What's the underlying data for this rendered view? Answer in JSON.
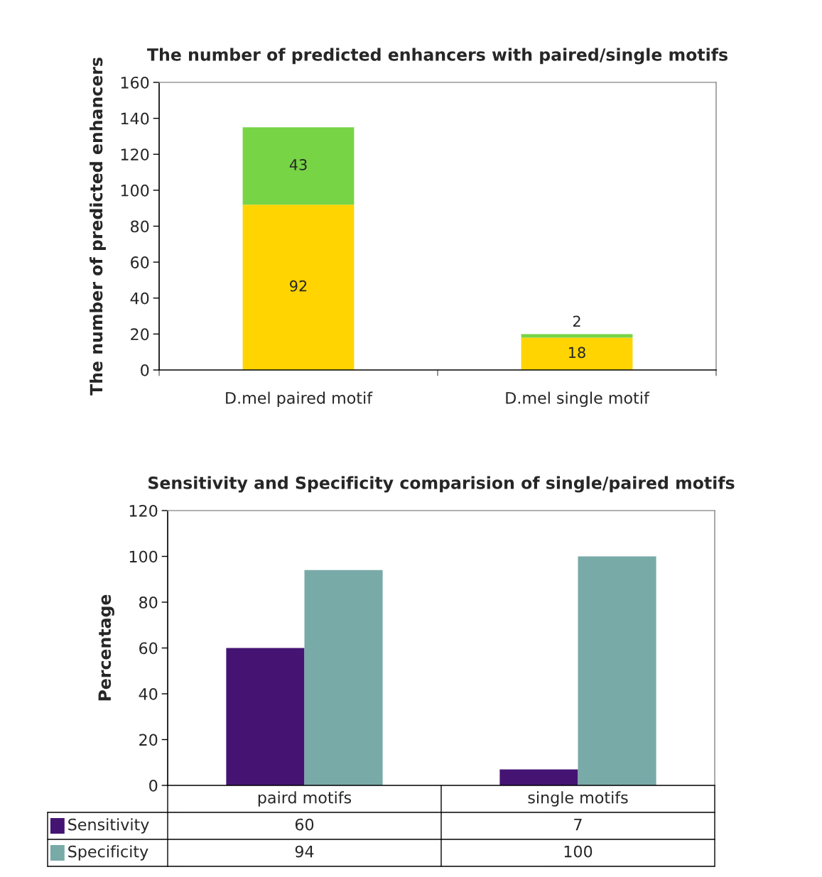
{
  "chart_data": [
    {
      "type": "bar",
      "title": "The number of predicted enhancers with paired/single motifs",
      "ylabel": "The number of predicted enhancers",
      "categories": [
        "D.mel paired motif",
        "D.mel single motif"
      ],
      "stacked": true,
      "series": [
        {
          "color": "#ffd400",
          "values": [
            92,
            18
          ]
        },
        {
          "color": "#77d445",
          "values": [
            43,
            2
          ]
        }
      ],
      "ylim": [
        0,
        160
      ],
      "yticks": [
        0,
        20,
        40,
        60,
        80,
        100,
        120,
        140,
        160
      ],
      "data_labels": true,
      "grid": false
    },
    {
      "type": "bar",
      "title": "Sensitivity and Specificity comparision of single/paired motifs",
      "ylabel": "Percentage",
      "categories": [
        "paird motifs",
        "single motifs"
      ],
      "series": [
        {
          "name": "Sensitivity",
          "color": "#451473",
          "values": [
            60,
            7
          ]
        },
        {
          "name": "Specificity",
          "color": "#78aaa8",
          "values": [
            94,
            100
          ]
        }
      ],
      "ylim": [
        0,
        120
      ],
      "yticks": [
        0,
        20,
        40,
        60,
        80,
        100,
        120
      ],
      "data_labels": true,
      "legend": "bottom",
      "grid": false
    }
  ]
}
